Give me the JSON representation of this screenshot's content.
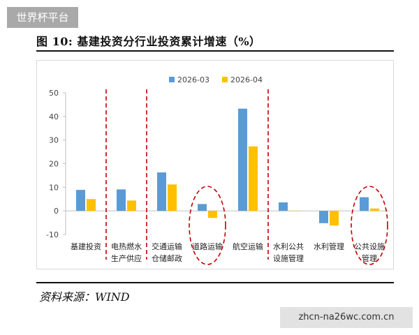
{
  "watermark_top": "世界杯平台",
  "watermark_bottom": "zhcn-na26wc.com.cn",
  "source": "资料来源：WIND",
  "colors": {
    "series1": "#5b9bd5",
    "series2": "#ffc000",
    "dashed": "#c00000",
    "axis": "#bfbfbf"
  },
  "chart_data": {
    "type": "bar",
    "title": "图 10:  基建投资分行业投资累计增速（%）",
    "xlabel": "",
    "ylabel": "",
    "ylim": [
      -10,
      50
    ],
    "yticks": [
      -10,
      0,
      10,
      20,
      30,
      40,
      50
    ],
    "grid": false,
    "legend": "top-center",
    "categories": [
      [
        "基建投资"
      ],
      [
        "电热燃水",
        "生产供应"
      ],
      [
        "交通运输",
        "仓储邮政"
      ],
      [
        "道路运输"
      ],
      [
        "航空运输"
      ],
      [
        "水利公共",
        "设施管理"
      ],
      [
        "水利管理"
      ],
      [
        "公共设施",
        "管理"
      ]
    ],
    "series": [
      {
        "name": "2026-03",
        "values": [
          8.9,
          9.1,
          16.3,
          2.9,
          43.3,
          3.6,
          -5.2,
          5.8
        ]
      },
      {
        "name": "2026-04",
        "values": [
          5.0,
          4.4,
          11.2,
          -3.0,
          27.3,
          0.0,
          -6.2,
          1.0
        ]
      }
    ],
    "dashed_separators_after": [
      0,
      1,
      4
    ],
    "highlight_circles": [
      3,
      7
    ]
  }
}
